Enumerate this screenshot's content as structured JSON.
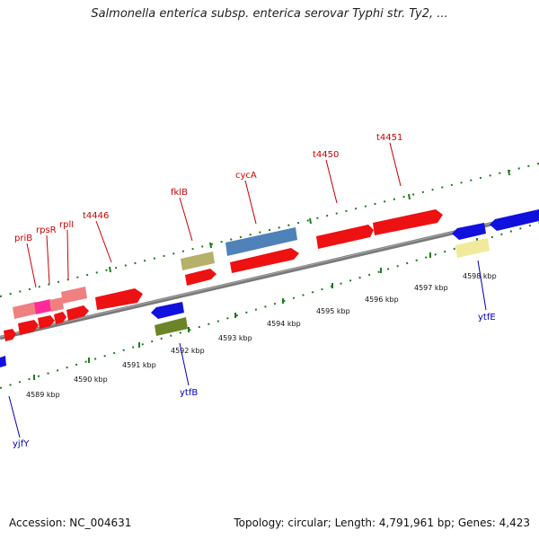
{
  "title": "Salmonella enterica subsp. enterica serovar Typhi str. Ty2, ...",
  "footer": {
    "accession": "Accession: NC_004631",
    "summary": "Topology: circular; Length: 4,791,961 bp; Genes: 4,423"
  },
  "colors": {
    "backbone": "#808080",
    "tick": "#1e7a1e",
    "forward_label": "#cc0000",
    "reverse_label": "#0000bb",
    "red_gene": "#ee1111",
    "blue_gene": "#1111dd",
    "rrna_pink": "#f08080",
    "magenta": "#ff2a9a",
    "olive": "#b5b06a",
    "steel_blue": "#4f82b8",
    "dark_olive": "#6b8428",
    "pale_yellow": "#f1ea9c"
  },
  "kbp_labels": [
    "4589 kbp",
    "4590 kbp",
    "4591 kbp",
    "4592 kbp",
    "4593 kbp",
    "4594 kbp",
    "4595 kbp",
    "4596 kbp",
    "4597 kbp",
    "4598 kbp"
  ],
  "forward_labels": [
    "priB",
    "rpsR",
    "rplI",
    "t4446",
    "fklB",
    "cycA",
    "t4450",
    "t4451"
  ],
  "reverse_labels": [
    "yjfY",
    "ytfB",
    "ytfE"
  ]
}
